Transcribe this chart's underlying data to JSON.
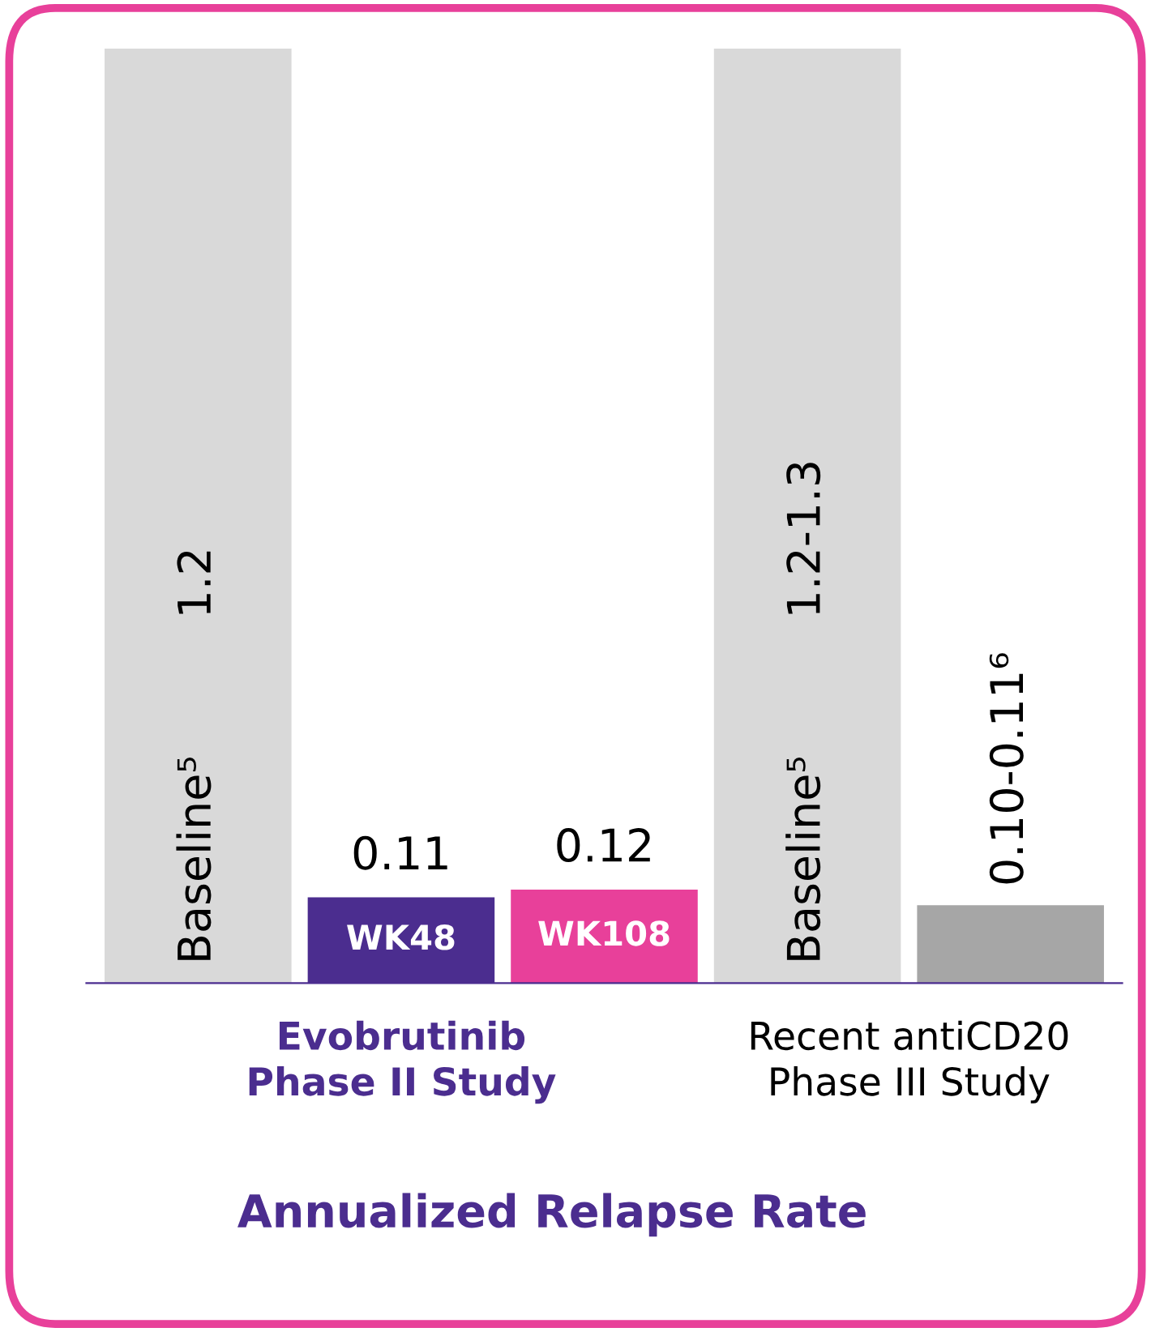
{
  "chart_data": {
    "type": "bar",
    "title": "Annualized Relapse Rate",
    "categories": [
      "Baseline⁵",
      "WK48",
      "WK108",
      "Baseline⁵",
      null
    ],
    "values": [
      1.2,
      0.11,
      0.12,
      1.2,
      0.1
    ],
    "value_labels": [
      "1.2",
      "0.11",
      "0.12",
      "1.2-1.3",
      "0.10-0.11⁶"
    ],
    "colors": [
      "#d9d9d9",
      "#4b2d8f",
      "#e8409a",
      "#d9d9d9",
      "#a6a6a6"
    ],
    "annotations": [
      "Evobrutinib\nPhase II Study",
      "Recent antiCD20\nPhase III Study"
    ]
  }
}
